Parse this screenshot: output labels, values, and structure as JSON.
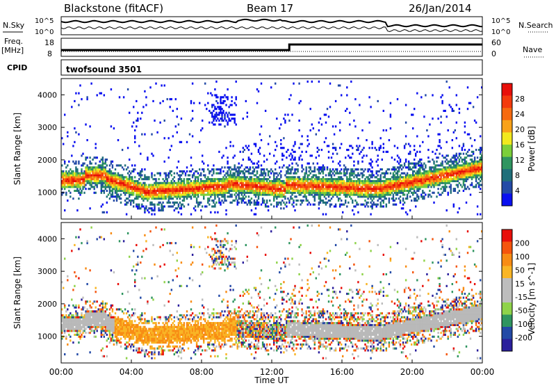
{
  "header": {
    "station": "Blackstone (fitACF)",
    "beam": "Beam 17",
    "date": "26/Jan/2014"
  },
  "top_panels": {
    "nsky_label": "N.Sky",
    "nsearch_label": "N.Search",
    "noise_ticks": [
      "10^5",
      "10^0"
    ],
    "noise_ticks_right": [
      "10^5",
      "10^0"
    ],
    "freq_label": "Freq.",
    "freq_unit": "[MHz]",
    "freq_ticks": [
      "18",
      "8"
    ],
    "nave_label": "Nave",
    "nave_ticks": [
      "60",
      "0"
    ],
    "cpid_label": "CPID",
    "cpid_value": "twofsound 3501"
  },
  "colors": {
    "power": [
      "#0a10f0",
      "#234aa6",
      "#1f6f7a",
      "#2f9560",
      "#7ccf3a",
      "#f2e91e",
      "#f9a219",
      "#f66a10",
      "#f43a0d",
      "#e80f0a"
    ],
    "velocity": [
      "#e80f0a",
      "#f5550d",
      "#f88c14",
      "#f9b525",
      "#bdbdbd",
      "#bdbdbd",
      "#8fd34a",
      "#2f9560",
      "#234aa6",
      "#2a1f9c"
    ],
    "ground_scatter": "#b9b9b9"
  },
  "chart_data": [
    {
      "type": "heatmap",
      "title": "Power",
      "xlabel": "Time UT",
      "ylabel": "Slant Range [km]",
      "xlim": [
        "00:00",
        "24:00"
      ],
      "ylim": [
        180,
        4500
      ],
      "x_ticks": [
        "00:00",
        "04:00",
        "08:00",
        "12:00",
        "16:00",
        "20:00",
        "00:00"
      ],
      "y_ticks": [
        "1000",
        "2000",
        "3000",
        "4000"
      ],
      "colorbar": {
        "label": "Power [dB]",
        "range": [
          0,
          32
        ],
        "ticks": [
          "4",
          "8",
          "12",
          "16",
          "20",
          "24",
          "28"
        ]
      },
      "features": [
        {
          "name": "main scatter band",
          "time_range": [
            "00:00",
            "24:00"
          ],
          "range_km": [
            900,
            1600
          ]
        },
        {
          "name": "intense core",
          "time_range": [
            "03:00",
            "09:30"
          ],
          "range_km": [
            700,
            1300
          ]
        },
        {
          "name": "upper echoes",
          "time_range": [
            "08:30",
            "10:00"
          ],
          "range_km": [
            3000,
            4000
          ]
        }
      ]
    },
    {
      "type": "heatmap",
      "title": "Velocity",
      "xlabel": "Time UT",
      "ylabel": "Slant Range [km]",
      "xlim": [
        "00:00",
        "24:00"
      ],
      "ylim": [
        180,
        4500
      ],
      "x_ticks": [
        "00:00",
        "04:00",
        "08:00",
        "12:00",
        "16:00",
        "20:00",
        "00:00"
      ],
      "y_ticks": [
        "1000",
        "2000",
        "3000",
        "4000"
      ],
      "colorbar": {
        "label": "Velocity [m s^-1]",
        "range": [
          -250,
          250
        ],
        "ticks": [
          "200",
          "100",
          "50",
          "15",
          "-15",
          "-50",
          "-100",
          "-200"
        ]
      }
    }
  ]
}
